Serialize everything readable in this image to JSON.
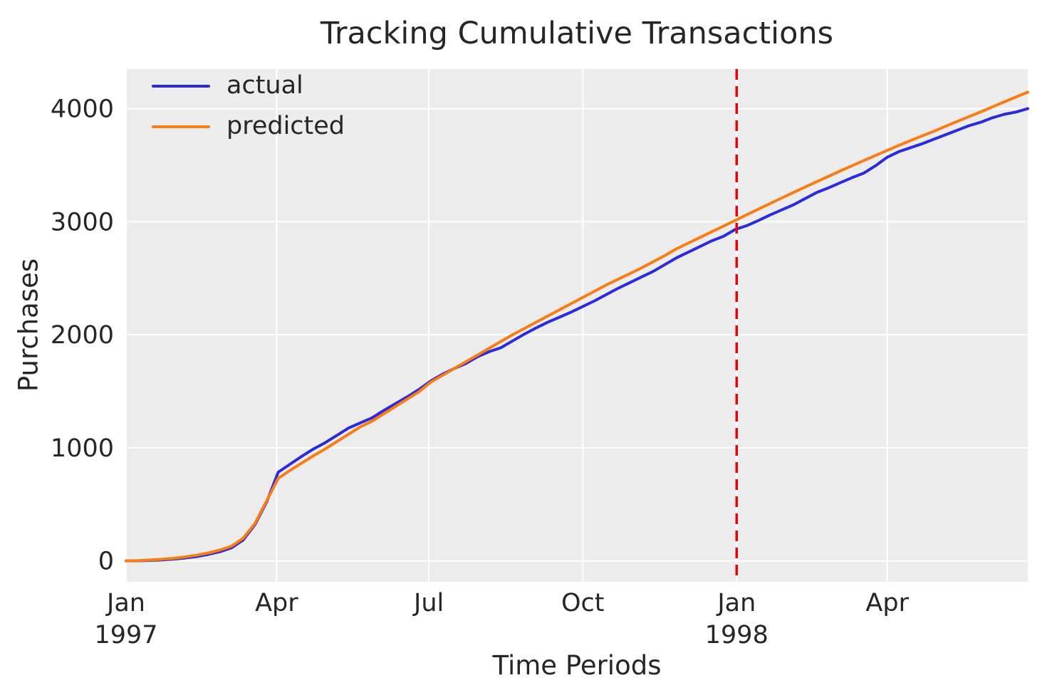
{
  "styles": {
    "plot_background": "#ececec",
    "grid_color": "#ffffff",
    "text_color": "#262626",
    "actual_color": "#2b2bdd",
    "predicted_color": "#f97d15",
    "vline_color": "#e8000b"
  },
  "chart_data": {
    "type": "line",
    "title": "Tracking Cumulative Transactions",
    "xlabel": "Time Periods",
    "ylabel": "Purchases",
    "grid": true,
    "legend_position": "upper left",
    "x_unit": "weekly periods starting Jan 1997, day = index * 7",
    "x_days_per_point": 7,
    "xlim_days": [
      0,
      539
    ],
    "ylim": [
      -185,
      4350
    ],
    "y_ticks": [
      {
        "value": 0,
        "label": "0"
      },
      {
        "value": 1000,
        "label": "1000"
      },
      {
        "value": 2000,
        "label": "2000"
      },
      {
        "value": 3000,
        "label": "3000"
      },
      {
        "value": 4000,
        "label": "4000"
      }
    ],
    "x_ticks": [
      {
        "day": 0,
        "line1": "Jan",
        "line2": "1997"
      },
      {
        "day": 90,
        "line1": "Apr",
        "line2": ""
      },
      {
        "day": 181,
        "line1": "Jul",
        "line2": ""
      },
      {
        "day": 273,
        "line1": "Oct",
        "line2": ""
      },
      {
        "day": 365,
        "line1": "Jan",
        "line2": "1998"
      },
      {
        "day": 455,
        "line1": "Apr",
        "line2": ""
      }
    ],
    "vline": {
      "day": 365,
      "style": "dashed",
      "color": "#e8000b",
      "meaning": "at Jan 1998"
    },
    "series": [
      {
        "name": "actual",
        "color": "#2b2bdd",
        "values": [
          0,
          1,
          4,
          8,
          15,
          25,
          38,
          57,
          81,
          115,
          185,
          320,
          520,
          785,
          855,
          925,
          990,
          1045,
          1110,
          1175,
          1220,
          1265,
          1330,
          1390,
          1450,
          1515,
          1590,
          1650,
          1700,
          1745,
          1805,
          1850,
          1885,
          1945,
          2005,
          2060,
          2110,
          2155,
          2200,
          2250,
          2300,
          2355,
          2410,
          2460,
          2510,
          2560,
          2620,
          2680,
          2730,
          2780,
          2830,
          2870,
          2930,
          2965,
          3010,
          3060,
          3105,
          3150,
          3205,
          3260,
          3300,
          3345,
          3390,
          3430,
          3495,
          3570,
          3620,
          3655,
          3690,
          3730,
          3770,
          3810,
          3850,
          3880,
          3920,
          3950,
          3970,
          4000
        ]
      },
      {
        "name": "predicted",
        "color": "#f97d15",
        "values": [
          0,
          3,
          8,
          14,
          22,
          35,
          50,
          70,
          95,
          130,
          200,
          330,
          530,
          730,
          800,
          865,
          930,
          990,
          1055,
          1120,
          1185,
          1235,
          1300,
          1365,
          1430,
          1495,
          1580,
          1640,
          1700,
          1760,
          1820,
          1880,
          1940,
          2000,
          2055,
          2110,
          2165,
          2220,
          2275,
          2330,
          2385,
          2440,
          2490,
          2540,
          2590,
          2645,
          2700,
          2760,
          2810,
          2860,
          2910,
          2960,
          3010,
          3061,
          3111,
          3161,
          3210,
          3259,
          3307,
          3355,
          3402,
          3449,
          3495,
          3541,
          3586,
          3631,
          3675,
          3718,
          3760,
          3800,
          3845,
          3888,
          3930,
          3972,
          4016,
          4060,
          4104,
          4146
        ]
      }
    ]
  }
}
